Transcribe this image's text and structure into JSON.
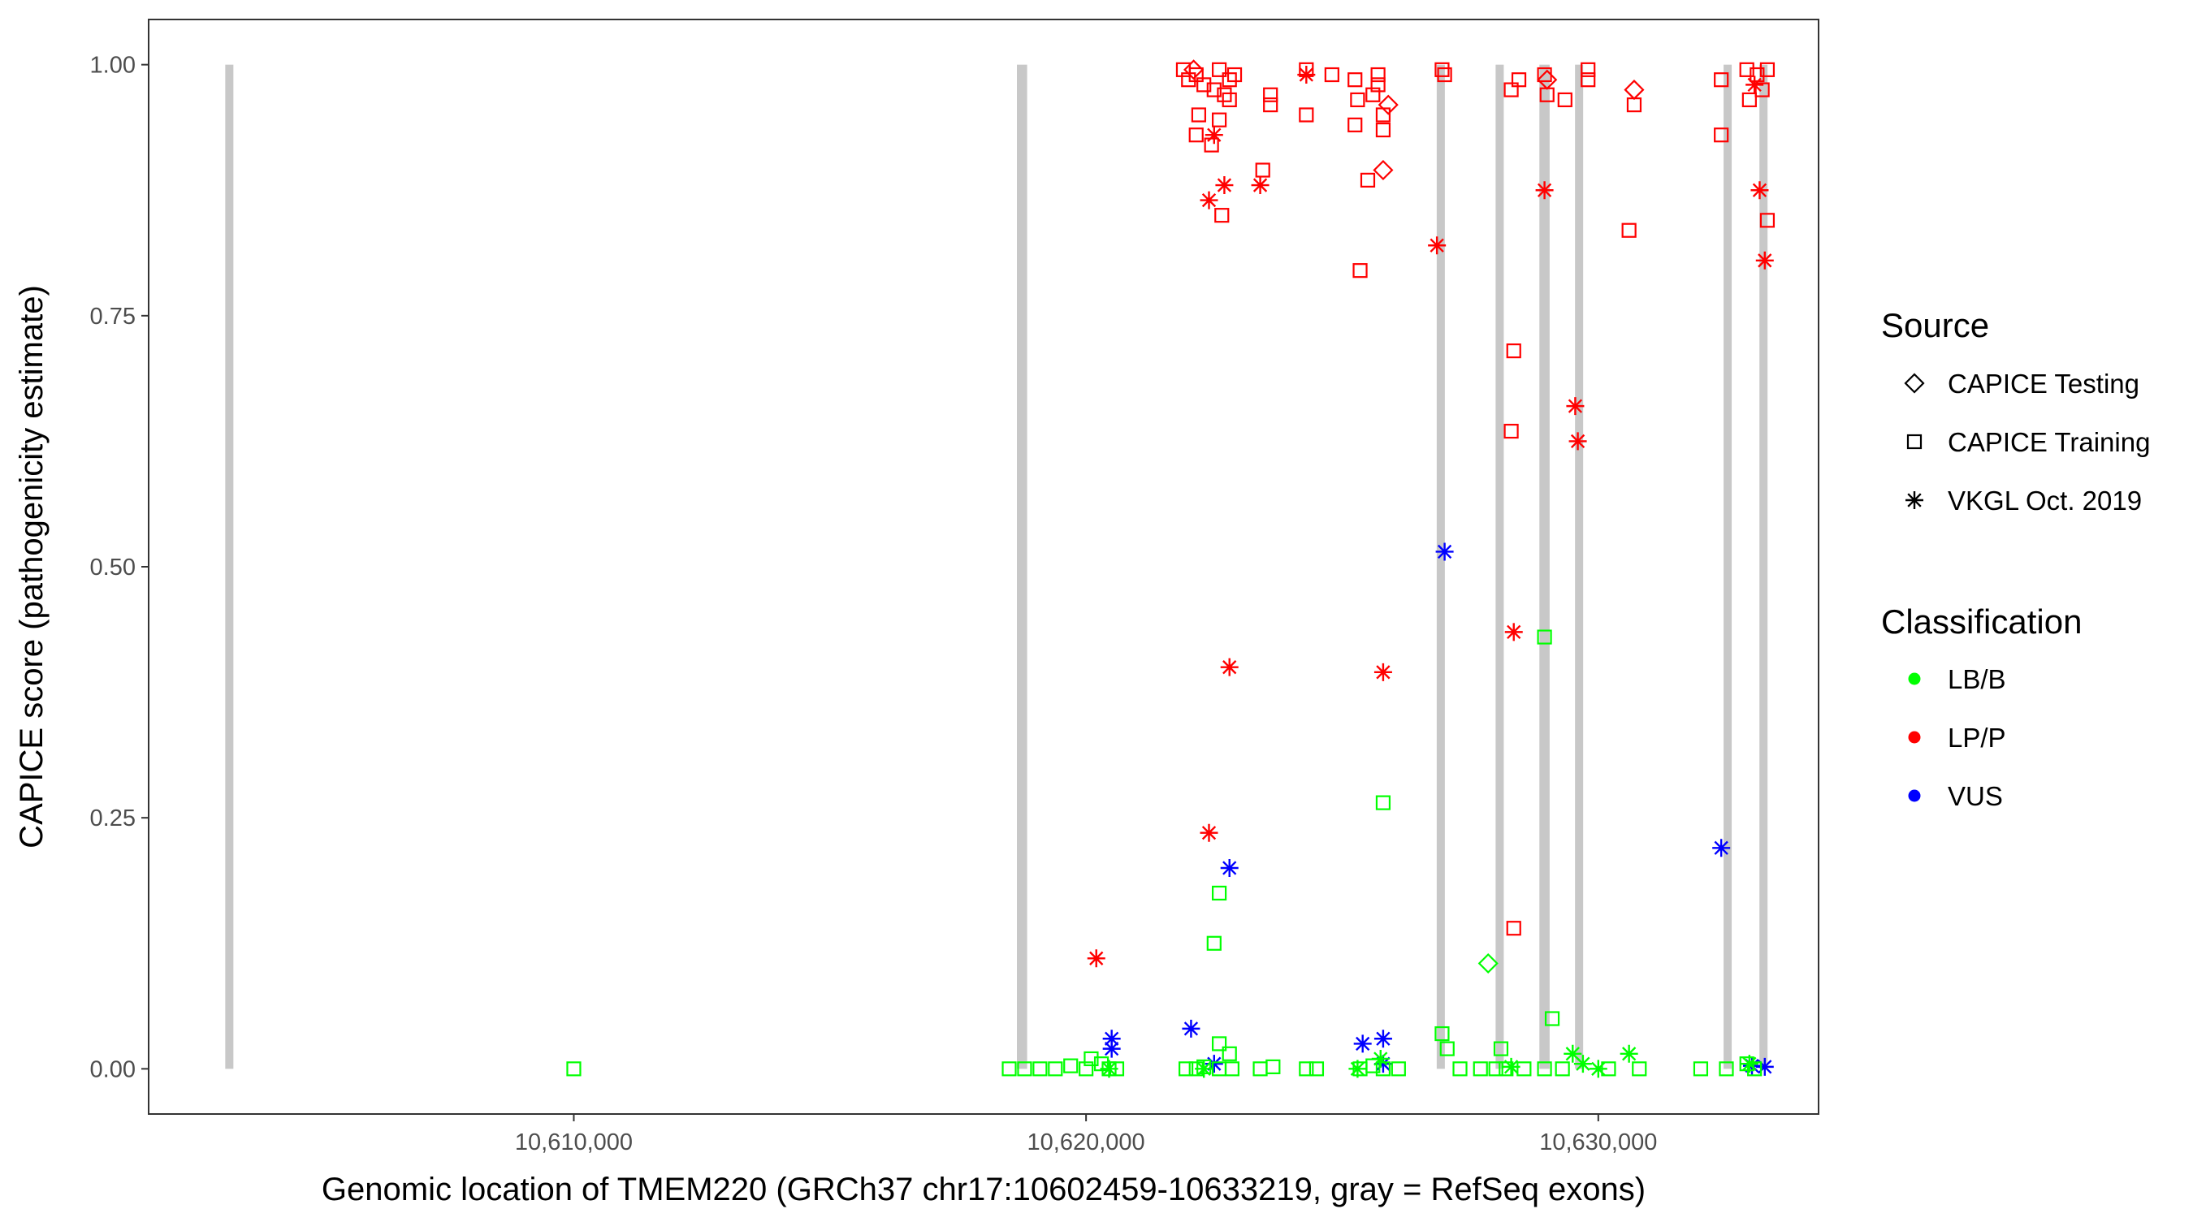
{
  "chart_data": {
    "type": "scatter",
    "xlabel": "Genomic location of TMEM220 (GRCh37 chr17:10602459-10633219, gray = RefSeq exons)",
    "ylabel": "CAPICE score (pathogenicity estimate)",
    "xlim": [
      10601700,
      10634300
    ],
    "ylim": [
      -0.045,
      1.045
    ],
    "x_ticks": [
      {
        "value": 10610000,
        "label": "10,610,000"
      },
      {
        "value": 10620000,
        "label": "10,620,000"
      },
      {
        "value": 10630000,
        "label": "10,630,000"
      }
    ],
    "y_ticks": [
      {
        "value": 0,
        "label": "0.00"
      },
      {
        "value": 0.25,
        "label": "0.25"
      },
      {
        "value": 0.5,
        "label": "0.50"
      },
      {
        "value": 0.75,
        "label": "0.75"
      },
      {
        "value": 1.0,
        "label": "1.00"
      }
    ],
    "exons": [
      {
        "start": 10603200,
        "end": 10603350
      },
      {
        "start": 10618650,
        "end": 10618850
      },
      {
        "start": 10626850,
        "end": 10627000
      },
      {
        "start": 10628000,
        "end": 10628150
      },
      {
        "start": 10628850,
        "end": 10629050
      },
      {
        "start": 10629550,
        "end": 10629700
      },
      {
        "start": 10632450,
        "end": 10632600
      },
      {
        "start": 10633150,
        "end": 10633300
      }
    ],
    "legend": {
      "source_title": "Source",
      "source": [
        {
          "shape": "diamond",
          "label": "CAPICE Testing"
        },
        {
          "shape": "square",
          "label": "CAPICE Training"
        },
        {
          "shape": "asterisk",
          "label": "VKGL Oct. 2019"
        }
      ],
      "classification_title": "Classification",
      "classification": [
        {
          "key": "LB/B",
          "label": "LB/B",
          "color": "#00ff00"
        },
        {
          "key": "LP/P",
          "label": "LP/P",
          "color": "#ff0000"
        },
        {
          "key": "VUS",
          "label": "VUS",
          "color": "#0000ff"
        }
      ]
    },
    "series": [
      {
        "name": "CAPICE Training LP/P",
        "shape": "square",
        "class": "LP/P",
        "points": [
          [
            10621900,
            0.995
          ],
          [
            10622000,
            0.985
          ],
          [
            10622150,
            0.99
          ],
          [
            10622300,
            0.98
          ],
          [
            10622200,
            0.95
          ],
          [
            10622150,
            0.93
          ],
          [
            10622500,
            0.975
          ],
          [
            10622600,
            0.995
          ],
          [
            10622800,
            0.985
          ],
          [
            10622700,
            0.97
          ],
          [
            10622600,
            0.945
          ],
          [
            10622450,
            0.92
          ],
          [
            10622900,
            0.99
          ],
          [
            10622800,
            0.965
          ],
          [
            10622650,
            0.85
          ],
          [
            10623450,
            0.895
          ],
          [
            10623600,
            0.97
          ],
          [
            10623600,
            0.96
          ],
          [
            10624300,
            0.995
          ],
          [
            10624300,
            0.95
          ],
          [
            10624800,
            0.99
          ],
          [
            10625250,
            0.985
          ],
          [
            10625300,
            0.965
          ],
          [
            10625250,
            0.94
          ],
          [
            10625700,
            0.99
          ],
          [
            10625700,
            0.98
          ],
          [
            10625600,
            0.97
          ],
          [
            10625800,
            0.95
          ],
          [
            10625800,
            0.935
          ],
          [
            10625500,
            0.885
          ],
          [
            10625350,
            0.795
          ],
          [
            10626950,
            0.995
          ],
          [
            10627000,
            0.99
          ],
          [
            10628300,
            0.975
          ],
          [
            10628450,
            0.985
          ],
          [
            10628950,
            0.99
          ],
          [
            10629000,
            0.97
          ],
          [
            10629350,
            0.965
          ],
          [
            10629800,
            0.995
          ],
          [
            10629800,
            0.985
          ],
          [
            10630700,
            0.96
          ],
          [
            10630600,
            0.835
          ],
          [
            10632400,
            0.985
          ],
          [
            10632400,
            0.93
          ],
          [
            10632900,
            0.995
          ],
          [
            10632950,
            0.965
          ],
          [
            10633100,
            0.99
          ],
          [
            10633200,
            0.975
          ],
          [
            10633300,
            0.995
          ],
          [
            10633300,
            0.845
          ],
          [
            10628300,
            0.635
          ],
          [
            10628350,
            0.715
          ],
          [
            10628350,
            0.14
          ]
        ]
      },
      {
        "name": "CAPICE Testing LP/P",
        "shape": "diamond",
        "class": "LP/P",
        "points": [
          [
            10622100,
            0.995
          ],
          [
            10625900,
            0.96
          ],
          [
            10625800,
            0.895
          ],
          [
            10630700,
            0.975
          ],
          [
            10629000,
            0.985
          ]
        ]
      },
      {
        "name": "VKGL LP/P",
        "shape": "asterisk",
        "class": "LP/P",
        "points": [
          [
            10622500,
            0.93
          ],
          [
            10622700,
            0.88
          ],
          [
            10622400,
            0.865
          ],
          [
            10623400,
            0.88
          ],
          [
            10624300,
            0.99
          ],
          [
            10626850,
            0.82
          ],
          [
            10628950,
            0.875
          ],
          [
            10633050,
            0.98
          ],
          [
            10633150,
            0.875
          ],
          [
            10633250,
            0.805
          ],
          [
            10629550,
            0.66
          ],
          [
            10629600,
            0.625
          ],
          [
            10628350,
            0.435
          ],
          [
            10622800,
            0.4
          ],
          [
            10625800,
            0.395
          ],
          [
            10622400,
            0.235
          ],
          [
            10620200,
            0.11
          ]
        ]
      },
      {
        "name": "VKGL VUS",
        "shape": "asterisk",
        "class": "VUS",
        "points": [
          [
            10627000,
            0.515
          ],
          [
            10632400,
            0.22
          ],
          [
            10622800,
            0.2
          ],
          [
            10622050,
            0.04
          ],
          [
            10620500,
            0.03
          ],
          [
            10620500,
            0.02
          ],
          [
            10625400,
            0.025
          ],
          [
            10625800,
            0.03
          ],
          [
            10622500,
            0.005
          ],
          [
            10625800,
            0.005
          ],
          [
            10633000,
            0.003
          ],
          [
            10633250,
            0.002
          ]
        ]
      },
      {
        "name": "CAPICE Training LB/B",
        "shape": "square",
        "class": "LB/B",
        "points": [
          [
            10610000,
            0.0
          ],
          [
            10618500,
            0.0
          ],
          [
            10618800,
            0.0
          ],
          [
            10619100,
            0.0
          ],
          [
            10619400,
            0.0
          ],
          [
            10619700,
            0.003
          ],
          [
            10620000,
            0.0
          ],
          [
            10620100,
            0.01
          ],
          [
            10620300,
            0.005
          ],
          [
            10620450,
            0.0
          ],
          [
            10620600,
            0.0
          ],
          [
            10621950,
            0.0
          ],
          [
            10622150,
            0.0
          ],
          [
            10622300,
            0.002
          ],
          [
            10622600,
            0.0
          ],
          [
            10622850,
            0.0
          ],
          [
            10622600,
            0.025
          ],
          [
            10622800,
            0.015
          ],
          [
            10622600,
            0.175
          ],
          [
            10622500,
            0.125
          ],
          [
            10623400,
            0.0
          ],
          [
            10623650,
            0.002
          ],
          [
            10624300,
            0.0
          ],
          [
            10624500,
            0.0
          ],
          [
            10625350,
            0.0
          ],
          [
            10625600,
            0.003
          ],
          [
            10625800,
            0.0
          ],
          [
            10626100,
            0.0
          ],
          [
            10625800,
            0.265
          ],
          [
            10626950,
            0.035
          ],
          [
            10627050,
            0.02
          ],
          [
            10627300,
            0.0
          ],
          [
            10627700,
            0.0
          ],
          [
            10628000,
            0.0
          ],
          [
            10628100,
            0.02
          ],
          [
            10628200,
            0.0
          ],
          [
            10628550,
            0.0
          ],
          [
            10628950,
            0.0
          ],
          [
            10629100,
            0.05
          ],
          [
            10629300,
            0.0
          ],
          [
            10630200,
            0.0
          ],
          [
            10630800,
            0.0
          ],
          [
            10632000,
            0.0
          ],
          [
            10632500,
            0.0
          ],
          [
            10628950,
            0.43
          ],
          [
            10632900,
            0.005
          ],
          [
            10633050,
            0.0
          ]
        ]
      },
      {
        "name": "CAPICE Testing LB/B",
        "shape": "diamond",
        "class": "LB/B",
        "points": [
          [
            10627850,
            0.105
          ]
        ]
      },
      {
        "name": "VKGL LB/B",
        "shape": "asterisk",
        "class": "LB/B",
        "points": [
          [
            10620450,
            0.0
          ],
          [
            10622300,
            0.0
          ],
          [
            10625300,
            0.0
          ],
          [
            10625750,
            0.01
          ],
          [
            10628300,
            0.002
          ],
          [
            10629500,
            0.015
          ],
          [
            10629700,
            0.005
          ],
          [
            10630000,
            0.0
          ],
          [
            10630600,
            0.015
          ],
          [
            10632950,
            0.005
          ]
        ]
      }
    ]
  }
}
